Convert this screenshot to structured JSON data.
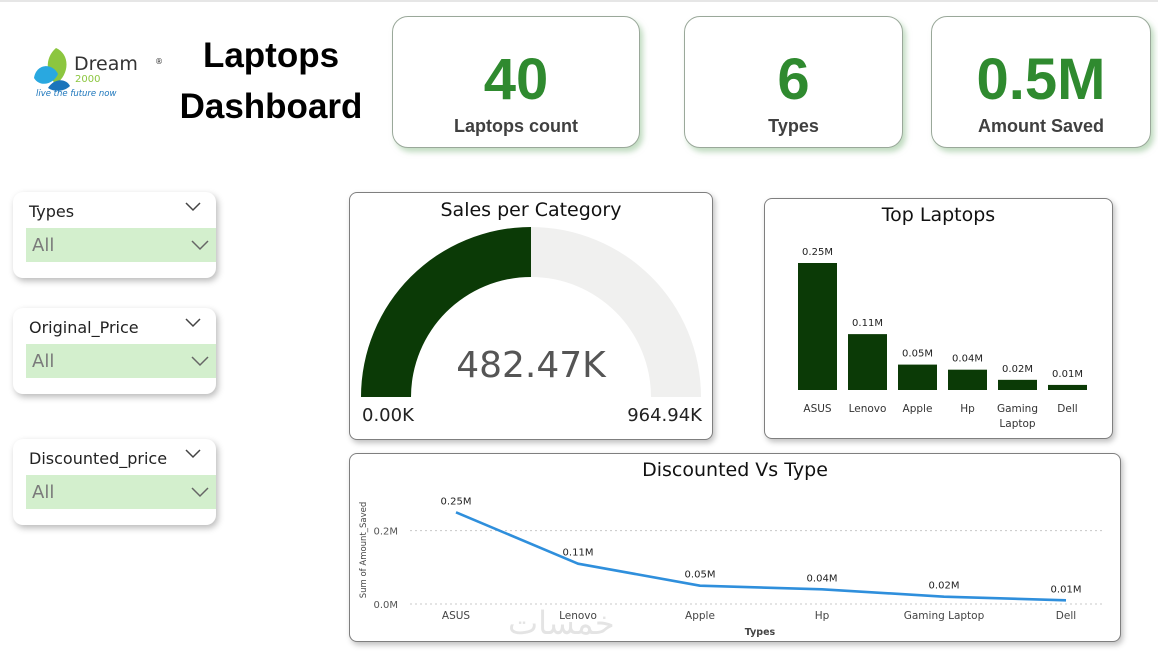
{
  "logo": {
    "brand": "Dream",
    "number": "2000",
    "tagline": "live the future now",
    "registered": "®"
  },
  "title_line1": "Laptops",
  "title_line2": "Dashboard",
  "kpis": [
    {
      "value": "40",
      "label": "Laptops count"
    },
    {
      "value": "6",
      "label": "Types"
    },
    {
      "value": "0.5M",
      "label": "Amount Saved"
    }
  ],
  "slicers": [
    {
      "label": "Types",
      "value": "All"
    },
    {
      "label": "Original_Price",
      "value": "All"
    },
    {
      "label": "Discounted_price",
      "value": "All"
    }
  ],
  "colors": {
    "accent_green": "#2f8a2f",
    "dark_green": "#0b3a06",
    "slicer_fill": "#d3efcd",
    "line_blue": "#2f8fdc",
    "gauge_track": "#f0f0ef"
  },
  "watermark": "خمسات",
  "chart_data": [
    {
      "type": "gauge",
      "title": "Sales per Category",
      "value": 482.47,
      "value_label": "482.47K",
      "min": 0,
      "max": 964.94,
      "min_label": "0.00K",
      "max_label": "964.94K"
    },
    {
      "type": "bar",
      "title": "Top Laptops",
      "categories": [
        "ASUS",
        "Lenovo",
        "Apple",
        "Hp",
        "Gaming Laptop",
        "Dell"
      ],
      "values": [
        0.25,
        0.11,
        0.05,
        0.04,
        0.02,
        0.01
      ],
      "data_labels": [
        "0.25M",
        "0.11M",
        "0.05M",
        "0.04M",
        "0.02M",
        "0.01M"
      ],
      "ylim": [
        0,
        0.25
      ]
    },
    {
      "type": "line",
      "title": "Discounted Vs Type",
      "categories": [
        "ASUS",
        "Lenovo",
        "Apple",
        "Hp",
        "Gaming Laptop",
        "Dell"
      ],
      "values": [
        0.25,
        0.11,
        0.05,
        0.04,
        0.02,
        0.01
      ],
      "data_labels": [
        "0.25M",
        "0.11M",
        "0.05M",
        "0.04M",
        "0.02M",
        "0.01M"
      ],
      "xlabel": "Types",
      "ylabel": "Sum of Amount_Saved",
      "yticks": [
        0,
        0.2
      ],
      "ytick_labels": [
        "0.0M",
        "0.2M"
      ],
      "ylim": [
        0,
        0.3
      ],
      "grid": true
    }
  ]
}
